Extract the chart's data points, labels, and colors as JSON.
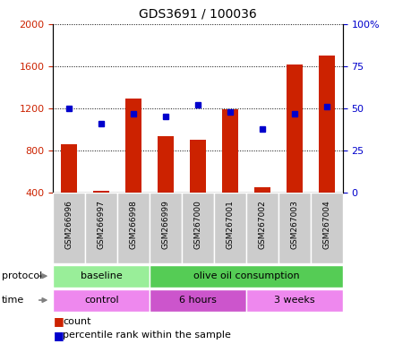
{
  "title": "GDS3691 / 100036",
  "samples": [
    "GSM266996",
    "GSM266997",
    "GSM266998",
    "GSM266999",
    "GSM267000",
    "GSM267001",
    "GSM267002",
    "GSM267003",
    "GSM267004"
  ],
  "count_values": [
    860,
    415,
    1290,
    940,
    900,
    1190,
    450,
    1620,
    1700
  ],
  "percentile_values": [
    50,
    41,
    47,
    45,
    52,
    48,
    38,
    47,
    51
  ],
  "ylim_left": [
    400,
    2000
  ],
  "ylim_right": [
    0,
    100
  ],
  "yticks_left": [
    400,
    800,
    1200,
    1600,
    2000
  ],
  "yticks_right": [
    0,
    25,
    50,
    75,
    100
  ],
  "bar_color": "#cc2200",
  "dot_color": "#0000cc",
  "bar_width": 0.5,
  "protocol_groups": [
    {
      "label": "baseline",
      "start": 0,
      "end": 3,
      "color": "#99ee99"
    },
    {
      "label": "olive oil consumption",
      "start": 3,
      "end": 9,
      "color": "#55cc55"
    }
  ],
  "time_groups": [
    {
      "label": "control",
      "start": 0,
      "end": 3,
      "color": "#ee88ee"
    },
    {
      "label": "6 hours",
      "start": 3,
      "end": 6,
      "color": "#cc55cc"
    },
    {
      "label": "3 weeks",
      "start": 6,
      "end": 9,
      "color": "#ee88ee"
    }
  ],
  "legend_count_label": "count",
  "legend_pct_label": "percentile rank within the sample",
  "left_axis_color": "#cc2200",
  "right_axis_color": "#0000cc",
  "grid_color": "#000000",
  "background_color": "#ffffff",
  "plot_bg_color": "#ffffff",
  "sample_box_color": "#cccccc"
}
